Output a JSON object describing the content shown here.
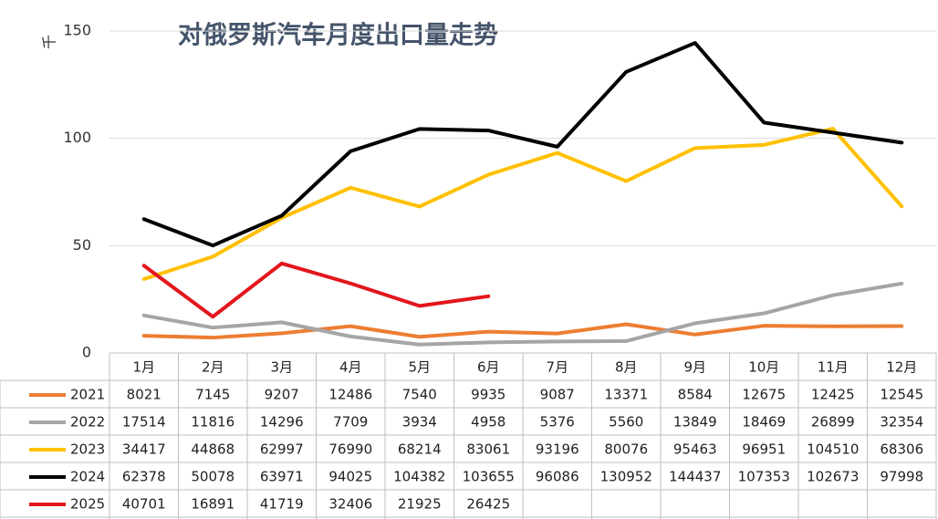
{
  "chart_data": {
    "type": "line",
    "title": "对俄罗斯汽车月度出口量走势",
    "y_label": "千",
    "categories": [
      "1月",
      "2月",
      "3月",
      "4月",
      "5月",
      "6月",
      "7月",
      "8月",
      "9月",
      "10月",
      "11月",
      "12月"
    ],
    "ylim": [
      0,
      150000
    ],
    "yticks": [
      0,
      {
        "value": 50000,
        "label": "50"
      },
      {
        "value": 100000,
        "label": "100"
      },
      {
        "value": 150000,
        "label": "150"
      }
    ],
    "grid": true,
    "data_table": true,
    "series": [
      {
        "name": "2021",
        "color": "#ed7d31",
        "values": [
          8021,
          7145,
          9207,
          12486,
          7540,
          9935,
          9087,
          13371,
          8584,
          12675,
          12425,
          12545
        ]
      },
      {
        "name": "2022",
        "color": "#a5a5a5",
        "values": [
          17514,
          11816,
          14296,
          7709,
          3934,
          4958,
          5376,
          5560,
          13849,
          18469,
          26899,
          32354
        ]
      },
      {
        "name": "2023",
        "color": "#ffc000",
        "values": [
          34417,
          44868,
          62997,
          76990,
          68214,
          83061,
          93196,
          80076,
          95463,
          96951,
          104510,
          68306
        ]
      },
      {
        "name": "2024",
        "color": "#000000",
        "values": [
          62378,
          50078,
          63971,
          94025,
          104382,
          103655,
          96086,
          130952,
          144437,
          107353,
          102673,
          97998
        ]
      },
      {
        "name": "2025",
        "color": "#e3161c",
        "values": [
          40701,
          16891,
          41719,
          32406,
          21925,
          26425,
          null,
          null,
          null,
          null,
          null,
          null
        ]
      }
    ]
  }
}
